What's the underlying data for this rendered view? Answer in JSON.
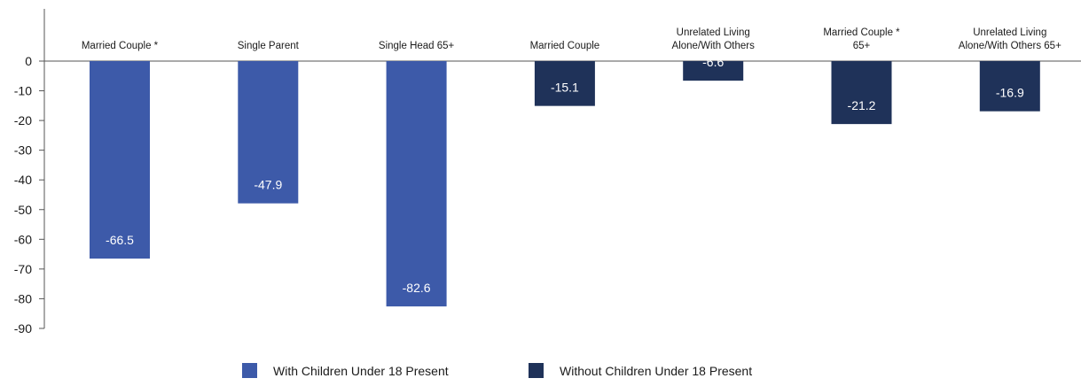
{
  "chart_data": {
    "type": "bar",
    "title": "",
    "xlabel": "",
    "ylabel": "",
    "ylim": [
      -90,
      0
    ],
    "yticks": [
      0,
      -10,
      -20,
      -30,
      -40,
      -50,
      -60,
      -70,
      -80,
      -90
    ],
    "categories": [
      [
        "Married Couple *"
      ],
      [
        "Single Parent"
      ],
      [
        "Single Head 65+"
      ],
      [
        "Married Couple"
      ],
      [
        "Unrelated Living",
        "Alone/With Others"
      ],
      [
        "Married Couple *",
        "65+"
      ],
      [
        "Unrelated Living",
        "Alone/With Others 65+"
      ]
    ],
    "values": [
      -66.5,
      -47.9,
      -82.6,
      -15.1,
      -6.6,
      -21.2,
      -16.9
    ],
    "value_labels": [
      "-66.5",
      "-47.9",
      "-82.6",
      "-15.1",
      "-6.6",
      "-21.2",
      "-16.9"
    ],
    "series_index": [
      0,
      0,
      0,
      1,
      1,
      1,
      1
    ],
    "series": [
      {
        "name": "With Children Under 18 Present",
        "color": "#3d5aa9"
      },
      {
        "name": "Without Children Under 18 Present",
        "color": "#1f3259"
      }
    ],
    "grid": false,
    "legend_position": "bottom"
  }
}
